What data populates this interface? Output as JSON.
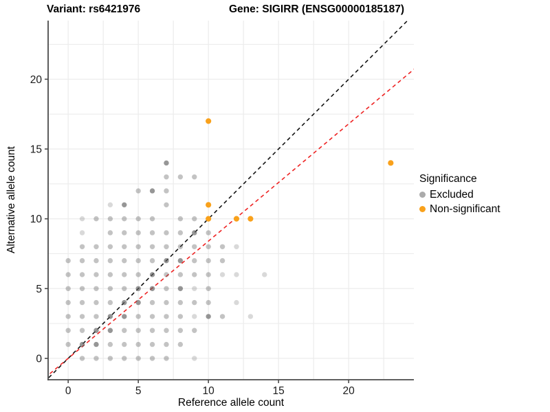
{
  "titles": {
    "left": "Variant: rs6421976",
    "right": "Gene: SIGIRR (ENSG00000185187)"
  },
  "legend": {
    "title": "Significance",
    "items": [
      {
        "label": "Excluded",
        "color": "#ababab"
      },
      {
        "label": "Non-significant",
        "color": "#F9A11B"
      }
    ]
  },
  "colors": {
    "excluded_point": "#606060",
    "non_significant_point": "#F9A11B",
    "identity_line": "#111111",
    "expected_line": "#EE2222",
    "gridline": "#ececec",
    "axis_line": "#4a4a4a",
    "tick_text": "#1a1a1a"
  },
  "chart_data": {
    "type": "scatter",
    "title": "Variant: rs6421976 / Gene: SIGIRR (ENSG00000185187)",
    "xlabel": "Reference allele count",
    "ylabel": "Alternative allele count",
    "xlim": [
      -1.43,
      24.65
    ],
    "ylim": [
      -1.53,
      24.2
    ],
    "x_ticks": [
      0,
      5,
      10,
      15,
      20
    ],
    "y_ticks": [
      0,
      5,
      10,
      15,
      20
    ],
    "x_minor": [
      2.5,
      7.5,
      12.5,
      17.5,
      22.5
    ],
    "y_minor": [
      2.5,
      7.5,
      12.5,
      17.5,
      22.5
    ],
    "grid": true,
    "legend_position": "right",
    "point_shade_opacity": {
      "l": 0.24,
      "m": 0.38,
      "d": 0.66
    },
    "series": [
      {
        "name": "Excluded",
        "points": [
          [
            0,
            1,
            "m"
          ],
          [
            0,
            2,
            "m"
          ],
          [
            0,
            3,
            "m"
          ],
          [
            0,
            4,
            "m"
          ],
          [
            0,
            5,
            "m"
          ],
          [
            0,
            6,
            "m"
          ],
          [
            0,
            7,
            "m"
          ],
          [
            1,
            0,
            "m"
          ],
          [
            1,
            1,
            "d"
          ],
          [
            1,
            2,
            "m"
          ],
          [
            1,
            3,
            "m"
          ],
          [
            1,
            4,
            "m"
          ],
          [
            1,
            5,
            "m"
          ],
          [
            1,
            6,
            "m"
          ],
          [
            1,
            7,
            "m"
          ],
          [
            1,
            8,
            "m"
          ],
          [
            1,
            9,
            "l"
          ],
          [
            1,
            10,
            "l"
          ],
          [
            2,
            0,
            "m"
          ],
          [
            2,
            1,
            "d"
          ],
          [
            2,
            2,
            "d"
          ],
          [
            2,
            3,
            "m"
          ],
          [
            2,
            4,
            "m"
          ],
          [
            2,
            5,
            "m"
          ],
          [
            2,
            6,
            "m"
          ],
          [
            2,
            7,
            "m"
          ],
          [
            2,
            8,
            "m"
          ],
          [
            2,
            10,
            "m"
          ],
          [
            3,
            0,
            "m"
          ],
          [
            3,
            1,
            "m"
          ],
          [
            3,
            2,
            "d"
          ],
          [
            3,
            3,
            "d"
          ],
          [
            3,
            4,
            "m"
          ],
          [
            3,
            5,
            "m"
          ],
          [
            3,
            6,
            "m"
          ],
          [
            3,
            7,
            "m"
          ],
          [
            3,
            8,
            "m"
          ],
          [
            3,
            9,
            "m"
          ],
          [
            3,
            10,
            "m"
          ],
          [
            3,
            11,
            "l"
          ],
          [
            4,
            0,
            "m"
          ],
          [
            4,
            1,
            "m"
          ],
          [
            4,
            2,
            "m"
          ],
          [
            4,
            3,
            "d"
          ],
          [
            4,
            4,
            "d"
          ],
          [
            4,
            5,
            "m"
          ],
          [
            4,
            6,
            "m"
          ],
          [
            4,
            7,
            "m"
          ],
          [
            4,
            8,
            "m"
          ],
          [
            4,
            9,
            "m"
          ],
          [
            4,
            10,
            "m"
          ],
          [
            4,
            11,
            "d"
          ],
          [
            5,
            0,
            "m"
          ],
          [
            5,
            1,
            "m"
          ],
          [
            5,
            2,
            "m"
          ],
          [
            5,
            3,
            "m"
          ],
          [
            5,
            4,
            "d"
          ],
          [
            5,
            5,
            "d"
          ],
          [
            5,
            6,
            "m"
          ],
          [
            5,
            7,
            "m"
          ],
          [
            5,
            8,
            "m"
          ],
          [
            5,
            9,
            "m"
          ],
          [
            5,
            10,
            "m"
          ],
          [
            5,
            12,
            "m"
          ],
          [
            6,
            0,
            "m"
          ],
          [
            6,
            1,
            "m"
          ],
          [
            6,
            2,
            "m"
          ],
          [
            6,
            3,
            "m"
          ],
          [
            6,
            4,
            "m"
          ],
          [
            6,
            5,
            "d"
          ],
          [
            6,
            6,
            "d"
          ],
          [
            6,
            7,
            "m"
          ],
          [
            6,
            8,
            "m"
          ],
          [
            6,
            9,
            "m"
          ],
          [
            6,
            10,
            "m"
          ],
          [
            6,
            12,
            "d"
          ],
          [
            7,
            0,
            "m"
          ],
          [
            7,
            1,
            "m"
          ],
          [
            7,
            2,
            "m"
          ],
          [
            7,
            3,
            "m"
          ],
          [
            7,
            4,
            "m"
          ],
          [
            7,
            5,
            "m"
          ],
          [
            7,
            6,
            "m"
          ],
          [
            7,
            7,
            "d"
          ],
          [
            7,
            8,
            "m"
          ],
          [
            7,
            9,
            "m"
          ],
          [
            7,
            11,
            "m"
          ],
          [
            7,
            12,
            "m"
          ],
          [
            7,
            13,
            "m"
          ],
          [
            7,
            14,
            "d"
          ],
          [
            8,
            1,
            "m"
          ],
          [
            8,
            2,
            "m"
          ],
          [
            8,
            3,
            "m"
          ],
          [
            8,
            4,
            "m"
          ],
          [
            8,
            5,
            "d"
          ],
          [
            8,
            6,
            "m"
          ],
          [
            8,
            7,
            "d"
          ],
          [
            8,
            8,
            "m"
          ],
          [
            8,
            9,
            "m"
          ],
          [
            8,
            10,
            "m"
          ],
          [
            8,
            13,
            "m"
          ],
          [
            9,
            0,
            "l"
          ],
          [
            9,
            2,
            "m"
          ],
          [
            9,
            3,
            "l"
          ],
          [
            9,
            4,
            "m"
          ],
          [
            9,
            5,
            "l"
          ],
          [
            9,
            6,
            "m"
          ],
          [
            9,
            7,
            "m"
          ],
          [
            9,
            8,
            "m"
          ],
          [
            9,
            9,
            "d"
          ],
          [
            9,
            10,
            "m"
          ],
          [
            9,
            13,
            "m"
          ],
          [
            10,
            3,
            "d"
          ],
          [
            10,
            4,
            "m"
          ],
          [
            10,
            5,
            "m"
          ],
          [
            10,
            6,
            "m"
          ],
          [
            10,
            7,
            "m"
          ],
          [
            10,
            8,
            "m"
          ],
          [
            10,
            9,
            "m"
          ],
          [
            11,
            3,
            "m"
          ],
          [
            11,
            6,
            "l"
          ],
          [
            11,
            7,
            "m"
          ],
          [
            11,
            8,
            "m"
          ],
          [
            12,
            4,
            "l"
          ],
          [
            12,
            6,
            "l"
          ],
          [
            12,
            8,
            "l"
          ],
          [
            13,
            3,
            "l"
          ],
          [
            14,
            6,
            "l"
          ]
        ]
      },
      {
        "name": "Non-significant",
        "points": [
          [
            10,
            10
          ],
          [
            10,
            11
          ],
          [
            10,
            17
          ],
          [
            12,
            10
          ],
          [
            13,
            10
          ],
          [
            23,
            14
          ]
        ]
      }
    ],
    "lines": [
      {
        "name": "identity-line",
        "style": "dashed",
        "slope": 1,
        "intercept": 0
      },
      {
        "name": "expected-line",
        "style": "dashed",
        "slope": 0.84,
        "intercept": 0
      }
    ]
  }
}
